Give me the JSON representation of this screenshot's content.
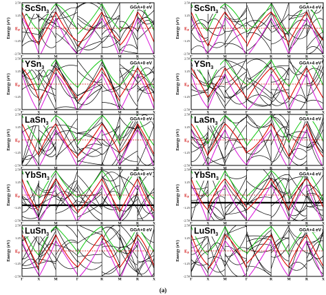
{
  "figure": {
    "caption": "(a)",
    "y_axis_label": "Energy (eV)",
    "fermi_label_main": "E",
    "fermi_label_sub": "F",
    "energy_range": [
      -2.5,
      2.5
    ],
    "y_ticks": [
      "2.50",
      "1.25",
      "-1.25",
      "-2.50"
    ],
    "k_path": [
      "Γ",
      "X",
      "M",
      "Γ",
      "R",
      "M",
      "R",
      "X"
    ],
    "colors": {
      "bands": "#000000",
      "red_band": "#e00000",
      "green_band": "#22cc22",
      "magenta_band": "#dd22dd",
      "fermi_line": "#cc0000"
    },
    "panels": [
      {
        "row": 0,
        "col": 0,
        "compound_main": "ScSn",
        "compound_sub": "3",
        "method": "GGA+0 eV"
      },
      {
        "row": 0,
        "col": 1,
        "compound_main": "ScSn",
        "compound_sub": "3",
        "method": "GGA+4 eV"
      },
      {
        "row": 1,
        "col": 0,
        "compound_main": "YSn",
        "compound_sub": "3",
        "method": "GGA+0 eV"
      },
      {
        "row": 1,
        "col": 1,
        "compound_main": "YSn",
        "compound_sub": "3",
        "method": "GGA+4 eV"
      },
      {
        "row": 2,
        "col": 0,
        "compound_main": "LaSn",
        "compound_sub": "3",
        "method": "GGA+0 eV"
      },
      {
        "row": 2,
        "col": 1,
        "compound_main": "LaSn",
        "compound_sub": "3",
        "method": "GGA+4 eV"
      },
      {
        "row": 3,
        "col": 0,
        "compound_main": "YbSn",
        "compound_sub": "3",
        "method": "GGA+0 eV"
      },
      {
        "row": 3,
        "col": 1,
        "compound_main": "YbSn",
        "compound_sub": "3",
        "method": "GGA+4 eV"
      },
      {
        "row": 4,
        "col": 0,
        "compound_main": "LuSn",
        "compound_sub": "3",
        "method": "GGA+0 eV"
      },
      {
        "row": 4,
        "col": 1,
        "compound_main": "LuSn",
        "compound_sub": "3",
        "method": "GGA+4 eV"
      }
    ]
  }
}
